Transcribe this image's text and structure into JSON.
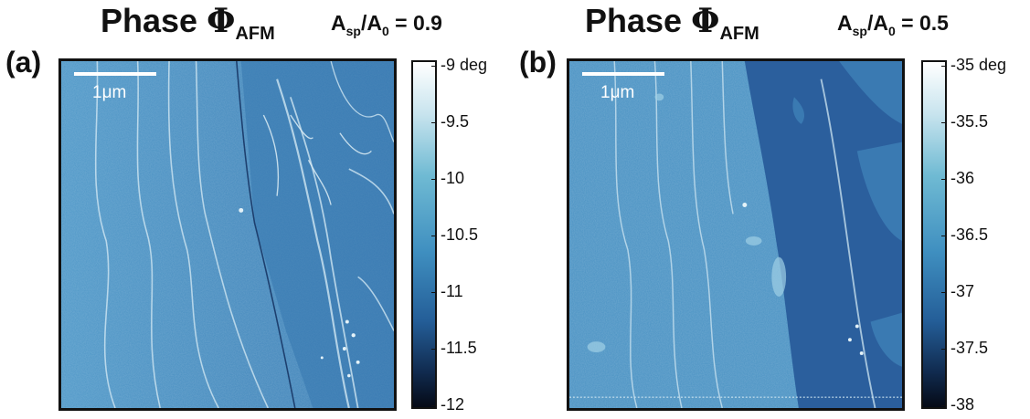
{
  "panels": [
    {
      "label": "(a)",
      "title_prefix": "Phase ",
      "title_symbol": "Φ",
      "title_sub": "AFM",
      "ratio_a": "A",
      "ratio_sp": "sp",
      "ratio_slash": "/A",
      "ratio_0": "0",
      "ratio_value": " = 0.9",
      "scalebar_label": "1μm",
      "colorbar_ticks": [
        "-9 deg",
        "-9.5",
        "-10",
        "-10.5",
        "-11",
        "-11.5",
        "-12"
      ],
      "colorbar_range": [
        -12,
        -9
      ]
    },
    {
      "label": "(b)",
      "title_prefix": "Phase ",
      "title_symbol": "Φ",
      "title_sub": "AFM",
      "ratio_a": "A",
      "ratio_sp": "sp",
      "ratio_slash": "/A",
      "ratio_0": "0",
      "ratio_value": " = 0.5",
      "scalebar_label": "1μm",
      "colorbar_ticks": [
        "-35 deg",
        "-35.5",
        "-36",
        "-36.5",
        "-37",
        "-37.5",
        "-38"
      ],
      "colorbar_range": [
        -38,
        -35
      ]
    }
  ],
  "colors": {
    "surface_light": "#4a93c4",
    "surface_dark": "#2a5f9c",
    "step_edge": "#cfe6f2",
    "frame": "#111111"
  }
}
